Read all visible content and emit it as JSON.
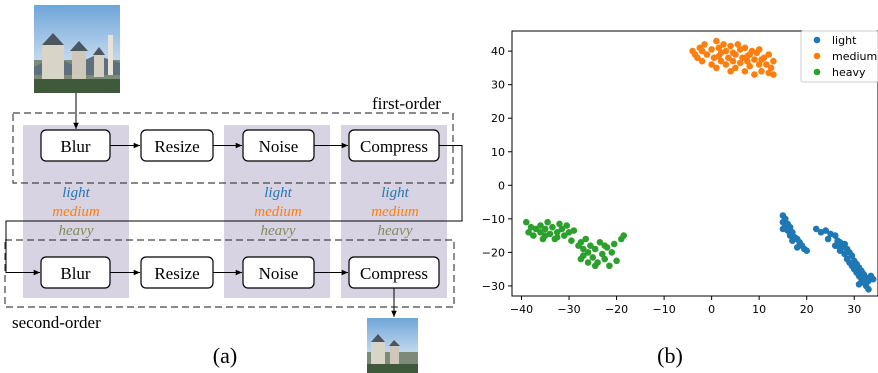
{
  "diagram": {
    "first_order_label": "first-order",
    "second_order_label": "second-order",
    "rows": [
      {
        "name": "first-order",
        "steps": [
          "Blur",
          "Resize",
          "Noise",
          "Compress"
        ]
      },
      {
        "name": "second-order",
        "steps": [
          "Blur",
          "Resize",
          "Noise",
          "Compress"
        ]
      }
    ],
    "levels": [
      "light",
      "medium",
      "heavy"
    ],
    "level_colors": {
      "light": "#1f77b4",
      "medium": "#ff7f0e",
      "heavy": "#7f8c5a"
    },
    "column_band_color": "#d8d3e3",
    "panel_label": "(a)"
  },
  "chart_data": {
    "type": "scatter",
    "title": "",
    "xlabel": "",
    "ylabel": "",
    "xlim": [
      -42,
      35
    ],
    "ylim": [
      -33,
      46
    ],
    "xticks": [
      -40,
      -30,
      -20,
      -10,
      0,
      10,
      20,
      30
    ],
    "yticks": [
      -30,
      -20,
      -10,
      0,
      10,
      20,
      30,
      40
    ],
    "grid": false,
    "legend_position": "top-right",
    "series": [
      {
        "name": "light",
        "color": "#1f77b4",
        "points": [
          [
            15,
            -9
          ],
          [
            15.5,
            -10
          ],
          [
            15,
            -11
          ],
          [
            16,
            -11.5
          ],
          [
            15.5,
            -12
          ],
          [
            16.5,
            -12.5
          ],
          [
            15,
            -13
          ],
          [
            16,
            -13.5
          ],
          [
            17,
            -14
          ],
          [
            16.5,
            -15
          ],
          [
            17.5,
            -15.5
          ],
          [
            18,
            -16
          ],
          [
            17,
            -16.5
          ],
          [
            18.5,
            -17
          ],
          [
            19,
            -18
          ],
          [
            18,
            -18.5
          ],
          [
            19.5,
            -19
          ],
          [
            20,
            -19.5
          ],
          [
            22,
            -13
          ],
          [
            23,
            -14
          ],
          [
            24,
            -13.5
          ],
          [
            25,
            -14.5
          ],
          [
            26,
            -15
          ],
          [
            24.5,
            -16
          ],
          [
            26.5,
            -16.5
          ],
          [
            27,
            -17
          ],
          [
            28,
            -17.5
          ],
          [
            26,
            -18
          ],
          [
            27.5,
            -18.5
          ],
          [
            28.5,
            -19
          ],
          [
            27,
            -19.5
          ],
          [
            29,
            -20
          ],
          [
            28,
            -20.5
          ],
          [
            29.5,
            -21
          ],
          [
            28.5,
            -22
          ],
          [
            30,
            -22.5
          ],
          [
            29,
            -23
          ],
          [
            30.5,
            -23.5
          ],
          [
            29.5,
            -24
          ],
          [
            31,
            -24.5
          ],
          [
            30,
            -25
          ],
          [
            31.5,
            -25.5
          ],
          [
            30.5,
            -26
          ],
          [
            32,
            -26.5
          ],
          [
            31,
            -27
          ],
          [
            32.5,
            -27.5
          ],
          [
            31.5,
            -28
          ],
          [
            33,
            -28.5
          ],
          [
            32,
            -29
          ],
          [
            33.5,
            -27
          ],
          [
            34,
            -28
          ],
          [
            31,
            -29.5
          ],
          [
            32.5,
            -30
          ],
          [
            33,
            -31
          ],
          [
            26.5,
            -18
          ],
          [
            27.2,
            -17.3
          ]
        ]
      },
      {
        "name": "medium",
        "color": "#ff7f0e",
        "points": [
          [
            -4,
            40
          ],
          [
            -3,
            38
          ],
          [
            -2.5,
            41
          ],
          [
            -2,
            37
          ],
          [
            -1,
            39
          ],
          [
            -1.5,
            42
          ],
          [
            0,
            36
          ],
          [
            0,
            40.5
          ],
          [
            0.5,
            38
          ],
          [
            1,
            43
          ],
          [
            1,
            35
          ],
          [
            1.5,
            41
          ],
          [
            2,
            37
          ],
          [
            2,
            39.5
          ],
          [
            2.5,
            42
          ],
          [
            3,
            36
          ],
          [
            3,
            40
          ],
          [
            3.5,
            38
          ],
          [
            4,
            34
          ],
          [
            4,
            41.5
          ],
          [
            4.5,
            37
          ],
          [
            5,
            39
          ],
          [
            5,
            35
          ],
          [
            5.5,
            42
          ],
          [
            6,
            36.5
          ],
          [
            6,
            40.5
          ],
          [
            6.5,
            38
          ],
          [
            7,
            34
          ],
          [
            7,
            41
          ],
          [
            7.5,
            37
          ],
          [
            8,
            39
          ],
          [
            8,
            35.5
          ],
          [
            8.5,
            40
          ],
          [
            9,
            33
          ],
          [
            9,
            37.5
          ],
          [
            9.5,
            39.5
          ],
          [
            10,
            36
          ],
          [
            10,
            40.5
          ],
          [
            10.5,
            34
          ],
          [
            11,
            38
          ],
          [
            11.5,
            36
          ],
          [
            12,
            33.5
          ],
          [
            12,
            39
          ],
          [
            12.5,
            35
          ],
          [
            13,
            37
          ],
          [
            13,
            33
          ],
          [
            -3.5,
            39
          ],
          [
            -2,
            40
          ],
          [
            1.5,
            38.5
          ],
          [
            4.5,
            39.5
          ],
          [
            7.5,
            38.5
          ],
          [
            10.5,
            37.5
          ]
        ]
      },
      {
        "name": "heavy",
        "color": "#2ca02c",
        "points": [
          [
            -39,
            -11
          ],
          [
            -38,
            -12.5
          ],
          [
            -38.5,
            -14
          ],
          [
            -37,
            -13
          ],
          [
            -37.5,
            -15
          ],
          [
            -36,
            -12
          ],
          [
            -36,
            -14
          ],
          [
            -35.5,
            -16
          ],
          [
            -35,
            -13
          ],
          [
            -34.5,
            -11
          ],
          [
            -34,
            -14.5
          ],
          [
            -33.5,
            -12.5
          ],
          [
            -33,
            -16
          ],
          [
            -32.5,
            -14
          ],
          [
            -32,
            -11.5
          ],
          [
            -31.5,
            -13
          ],
          [
            -31,
            -15
          ],
          [
            -30.5,
            -12
          ],
          [
            -30,
            -14
          ],
          [
            -29.5,
            -16.5
          ],
          [
            -29,
            -13.5
          ],
          [
            -28,
            -18
          ],
          [
            -27.5,
            -17
          ],
          [
            -27,
            -19
          ],
          [
            -27,
            -21
          ],
          [
            -26.5,
            -16
          ],
          [
            -26,
            -20
          ],
          [
            -26,
            -23
          ],
          [
            -25.5,
            -18
          ],
          [
            -25,
            -21.5
          ],
          [
            -24.5,
            -19
          ],
          [
            -24,
            -23
          ],
          [
            -23.5,
            -17
          ],
          [
            -23,
            -20.5
          ],
          [
            -22.5,
            -22
          ],
          [
            -22,
            -18.5
          ],
          [
            -21.5,
            -24
          ],
          [
            -21,
            -20
          ],
          [
            -20.5,
            -17.5
          ],
          [
            -20,
            -22.5
          ],
          [
            -19,
            -16
          ],
          [
            -18.5,
            -15
          ],
          [
            -27.5,
            -22
          ],
          [
            -24.5,
            -24
          ],
          [
            -22.5,
            -18
          ],
          [
            -35,
            -15
          ],
          [
            -32.5,
            -15.5
          ]
        ]
      }
    ],
    "panel_label": "(b)"
  }
}
